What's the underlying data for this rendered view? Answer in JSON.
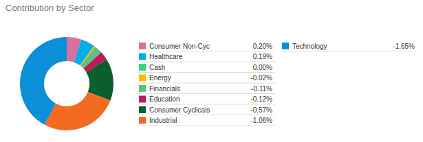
{
  "chart_data": {
    "type": "pie",
    "title": "Contribution by Sector",
    "categories": [
      "Consumer Non-Cyc",
      "Healthcare",
      "Cash",
      "Energy",
      "Financials",
      "Education",
      "Consumer Cyclicals",
      "Industrial",
      "Technology"
    ],
    "values": [
      0.2,
      0.19,
      0,
      -0.02,
      -0.11,
      -0.12,
      -0.57,
      -1.06,
      -1.65
    ],
    "value_labels": [
      "0.20%",
      "0.19%",
      "0.00%",
      "-0.02%",
      "-0.11%",
      "-0.12%",
      "-0.57%",
      "-1.06%",
      "-1.65%"
    ],
    "colors": [
      "#d9719b",
      "#00aee8",
      "#2fd97a",
      "#f5c000",
      "#5fbf7f",
      "#c2185b",
      "#0b5e2e",
      "#f26b21",
      "#0b8fd8"
    ],
    "legend": "right"
  }
}
